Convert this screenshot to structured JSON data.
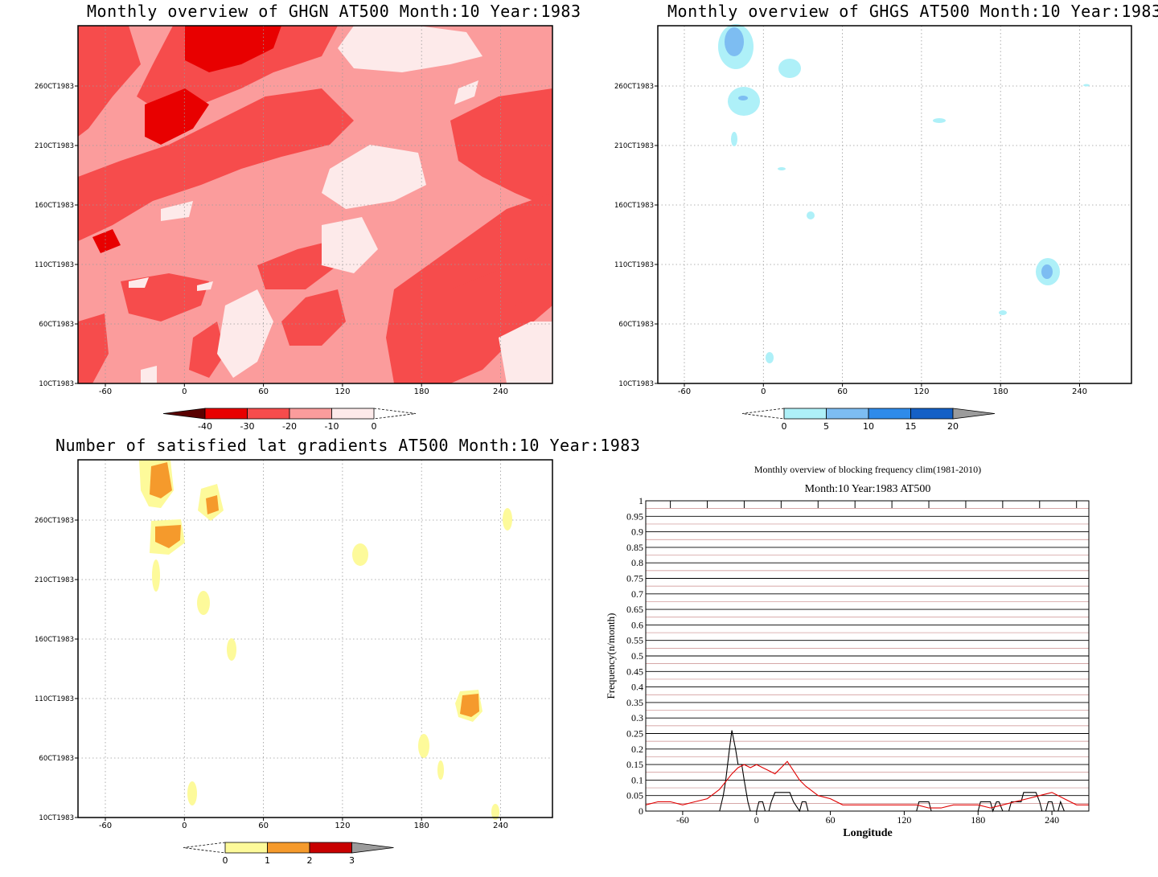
{
  "y_ticks": [
    "260CT1983",
    "210CT1983",
    "160CT1983",
    "110CT1983",
    "60CT1983",
    "10CT1983"
  ],
  "x_ticks": [
    "-60",
    "0",
    "60",
    "120",
    "180",
    "240"
  ],
  "panels": [
    {
      "id": "ghgn",
      "title": "Monthly overview of GHGN AT500 Month:10 Year:1983",
      "colorbar": {
        "labels": [
          "-40",
          "-30",
          "-20",
          "-10",
          "0"
        ],
        "colors": [
          "#5a0000",
          "#e80000",
          "#f64c4c",
          "#fb9c9c",
          "#fdeaea"
        ]
      }
    },
    {
      "id": "ghgs",
      "title": "Monthly overview of GHGS AT500 Month:10 Year:1983",
      "colorbar": {
        "labels": [
          "0",
          "5",
          "10",
          "15",
          "20"
        ],
        "colors": [
          "#aef0f8",
          "#7dbdf2",
          "#2f8bea",
          "#1460c6",
          "#9b9b9b"
        ]
      }
    },
    {
      "id": "lat",
      "title": "Number of satisfied lat gradients AT500 Month:10 Year:1983",
      "colorbar": {
        "labels": [
          "0",
          "1",
          "2",
          "3"
        ],
        "colors": [
          "#fdfa9a",
          "#f59a2c",
          "#c80000",
          "#9b9b9b"
        ]
      }
    }
  ],
  "chart_data": {
    "type": "line",
    "title": "Monthly overview of blocking frequency clim(1981-2010)",
    "subtitle": "Month:10 Year:1983  AT500",
    "xlabel": "Longitude",
    "ylabel": "Frequency(n/month)",
    "xlim": [
      -90,
      270
    ],
    "ylim": [
      0,
      1
    ],
    "x_ticks": [
      "-60",
      "0",
      "60",
      "120",
      "180",
      "240"
    ],
    "y_ticks": [
      "0",
      "0.05",
      "0.1",
      "0.15",
      "0.2",
      "0.25",
      "0.3",
      "0.35",
      "0.4",
      "0.45",
      "0.5",
      "0.55",
      "0.6",
      "0.65",
      "0.7",
      "0.75",
      "0.8",
      "0.85",
      "0.9",
      "0.95",
      "1"
    ],
    "series": [
      {
        "color": "#000000",
        "x": [
          -90,
          -30,
          -27,
          -25,
          -22,
          -20,
          -17,
          -15,
          -12,
          -10,
          -7,
          -5,
          -2,
          0,
          2,
          5,
          7,
          10,
          12,
          15,
          17,
          20,
          25,
          27,
          30,
          35,
          37,
          40,
          42,
          45,
          130,
          132,
          135,
          140,
          142,
          180,
          182,
          185,
          190,
          192,
          195,
          197,
          200,
          205,
          207,
          210,
          215,
          217,
          220,
          225,
          227,
          230,
          232,
          235,
          237,
          240,
          242,
          245,
          247,
          250,
          270
        ],
        "y": [
          0,
          0,
          0.05,
          0.1,
          0.2,
          0.26,
          0.2,
          0.15,
          0.15,
          0.1,
          0.03,
          0,
          0,
          0,
          0.03,
          0.03,
          0,
          0,
          0.03,
          0.06,
          0.06,
          0.06,
          0.06,
          0.06,
          0.03,
          0,
          0.03,
          0.03,
          0,
          0,
          0,
          0.03,
          0.03,
          0.03,
          0,
          0,
          0.03,
          0.03,
          0.03,
          0,
          0.03,
          0.03,
          0,
          0,
          0.03,
          0.03,
          0.03,
          0.06,
          0.06,
          0.06,
          0.06,
          0.03,
          0,
          0,
          0.03,
          0.03,
          0,
          0,
          0.03,
          0,
          0
        ]
      },
      {
        "color": "#e00000",
        "x": [
          -90,
          -80,
          -70,
          -60,
          -50,
          -40,
          -30,
          -20,
          -15,
          -10,
          -5,
          0,
          5,
          10,
          15,
          20,
          25,
          30,
          35,
          40,
          50,
          60,
          70,
          80,
          90,
          100,
          110,
          120,
          130,
          140,
          150,
          160,
          170,
          180,
          190,
          200,
          210,
          220,
          230,
          240,
          250,
          260,
          270
        ],
        "y": [
          0.02,
          0.03,
          0.03,
          0.02,
          0.03,
          0.04,
          0.07,
          0.12,
          0.14,
          0.15,
          0.14,
          0.15,
          0.14,
          0.13,
          0.12,
          0.14,
          0.16,
          0.13,
          0.1,
          0.08,
          0.05,
          0.04,
          0.02,
          0.02,
          0.02,
          0.02,
          0.02,
          0.02,
          0.02,
          0.01,
          0.01,
          0.02,
          0.02,
          0.02,
          0.01,
          0.02,
          0.03,
          0.04,
          0.05,
          0.06,
          0.04,
          0.02,
          0.02
        ]
      }
    ]
  }
}
